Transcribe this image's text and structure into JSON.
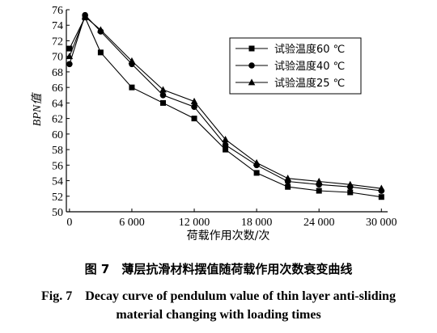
{
  "chart_data": {
    "type": "line",
    "ylabel": "BPN值",
    "xlabel": "荷载作用次数/次",
    "x": [
      0,
      1500,
      3000,
      6000,
      9000,
      12000,
      15000,
      18000,
      21000,
      24000,
      27000,
      30000
    ],
    "x_ticks": [
      0,
      6000,
      12000,
      18000,
      24000,
      30000
    ],
    "x_tick_labels": [
      "0",
      "6 000",
      "12 000",
      "18 000",
      "24 000",
      "30 000"
    ],
    "y_ticks": [
      50,
      52,
      54,
      56,
      58,
      60,
      62,
      64,
      66,
      68,
      70,
      72,
      74,
      76
    ],
    "xlim": [
      -300,
      30600
    ],
    "ylim": [
      50,
      76
    ],
    "grid": false,
    "legend_position": "top-right",
    "series": [
      {
        "name": "试验温度60 ℃",
        "marker": "square",
        "values": [
          71.0,
          75.0,
          70.5,
          66.0,
          64.0,
          62.0,
          58.0,
          55.0,
          53.2,
          52.7,
          52.5,
          51.9
        ]
      },
      {
        "name": "试验温度40 ℃",
        "marker": "circle",
        "values": [
          69.0,
          75.3,
          73.2,
          69.0,
          65.0,
          63.5,
          58.6,
          56.0,
          53.9,
          53.5,
          53.2,
          52.7
        ]
      },
      {
        "name": "试验温度25 ℃",
        "marker": "triangle",
        "values": [
          70.0,
          75.1,
          73.4,
          69.4,
          65.7,
          64.2,
          59.3,
          56.3,
          54.3,
          53.9,
          53.5,
          53.0
        ]
      }
    ]
  },
  "caption": {
    "cn": "图 7　薄层抗滑材料摆值随荷载作用次数衰变曲线",
    "en_line1": "Fig. 7　Decay curve of pendulum value of thin layer anti-sliding",
    "en_line2": "material changing with loading times"
  }
}
